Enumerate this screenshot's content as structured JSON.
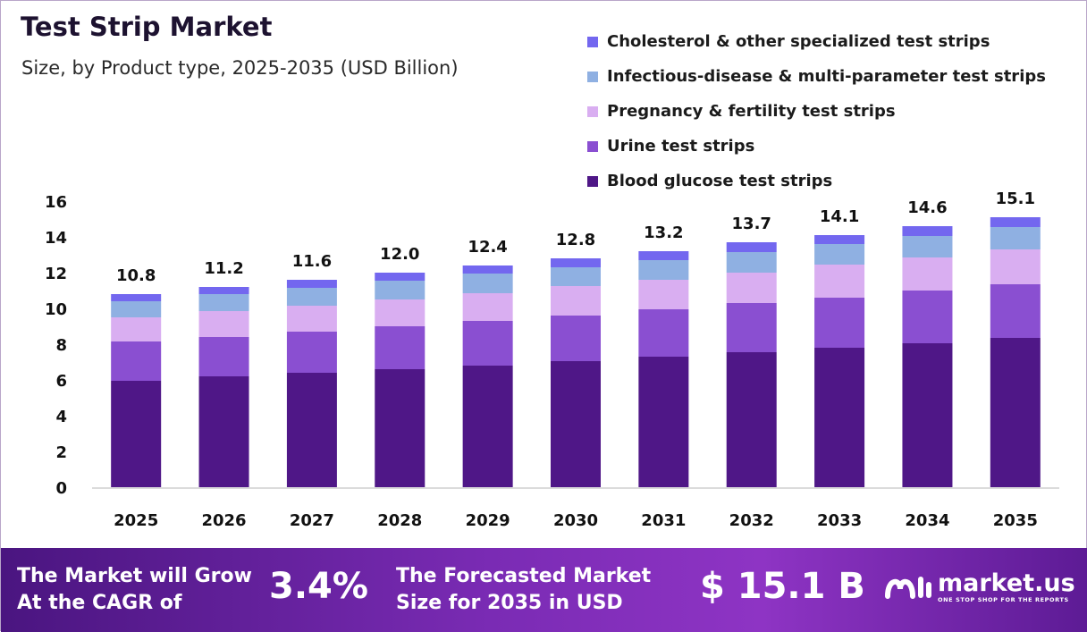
{
  "title": "Test Strip Market",
  "subtitle": "Size, by Product type, 2025-2035 (USD Billion)",
  "colors": {
    "blood_glucose": "#4f1787",
    "urine": "#8a4fd1",
    "pregnancy": "#d9aef1",
    "infectious": "#8fb0e2",
    "cholesterol": "#7367ef"
  },
  "legend": [
    {
      "label": "Cholesterol & other specialized test strips",
      "color_key": "cholesterol"
    },
    {
      "label": "Infectious-disease & multi-parameter test strips",
      "color_key": "infectious"
    },
    {
      "label": "Pregnancy & fertility test strips",
      "color_key": "pregnancy"
    },
    {
      "label": "Urine test strips",
      "color_key": "urine"
    },
    {
      "label": "Blood glucose test strips",
      "color_key": "blood_glucose"
    }
  ],
  "chart_data": {
    "type": "bar",
    "stacked": true,
    "title": "Test Strip Market",
    "subtitle": "Size, by Product type, 2025-2035 (USD Billion)",
    "categories": [
      "2025",
      "2026",
      "2027",
      "2028",
      "2029",
      "2030",
      "2031",
      "2032",
      "2033",
      "2034",
      "2035"
    ],
    "ylim": [
      0,
      16
    ],
    "yticks": [
      0,
      2,
      4,
      6,
      8,
      10,
      12,
      14,
      16
    ],
    "grid": false,
    "legend_position": "top-right",
    "series": [
      {
        "name": "Blood glucose test strips",
        "color_key": "blood_glucose",
        "values": [
          5.95,
          6.2,
          6.4,
          6.6,
          6.8,
          7.05,
          7.3,
          7.55,
          7.8,
          8.05,
          8.35
        ]
      },
      {
        "name": "Urine test strips",
        "color_key": "urine",
        "values": [
          2.2,
          2.2,
          2.3,
          2.4,
          2.5,
          2.55,
          2.65,
          2.75,
          2.8,
          2.95,
          3.0
        ]
      },
      {
        "name": "Pregnancy & fertility test strips",
        "color_key": "pregnancy",
        "values": [
          1.35,
          1.45,
          1.45,
          1.5,
          1.55,
          1.65,
          1.65,
          1.7,
          1.85,
          1.85,
          1.95
        ]
      },
      {
        "name": "Infectious-disease & multi-parameter test strips",
        "color_key": "infectious",
        "values": [
          0.9,
          0.95,
          1.0,
          1.05,
          1.1,
          1.05,
          1.1,
          1.15,
          1.15,
          1.2,
          1.25
        ]
      },
      {
        "name": "Cholesterol & other specialized test strips",
        "color_key": "cholesterol",
        "values": [
          0.4,
          0.4,
          0.45,
          0.45,
          0.45,
          0.5,
          0.5,
          0.55,
          0.5,
          0.55,
          0.55
        ]
      }
    ],
    "totals": [
      "10.8",
      "11.2",
      "11.6",
      "12.0",
      "12.4",
      "12.8",
      "13.2",
      "13.7",
      "14.1",
      "14.6",
      "15.1"
    ]
  },
  "banner": {
    "cagr_text": "The Market will Grow\nAt the CAGR of",
    "cagr_value": "3.4%",
    "forecast_text": "The Forecasted Market\nSize for 2035 in USD",
    "forecast_value": "$ 15.1 B",
    "brand_name": "market.us",
    "brand_tagline": "ONE STOP SHOP FOR THE REPORTS"
  }
}
